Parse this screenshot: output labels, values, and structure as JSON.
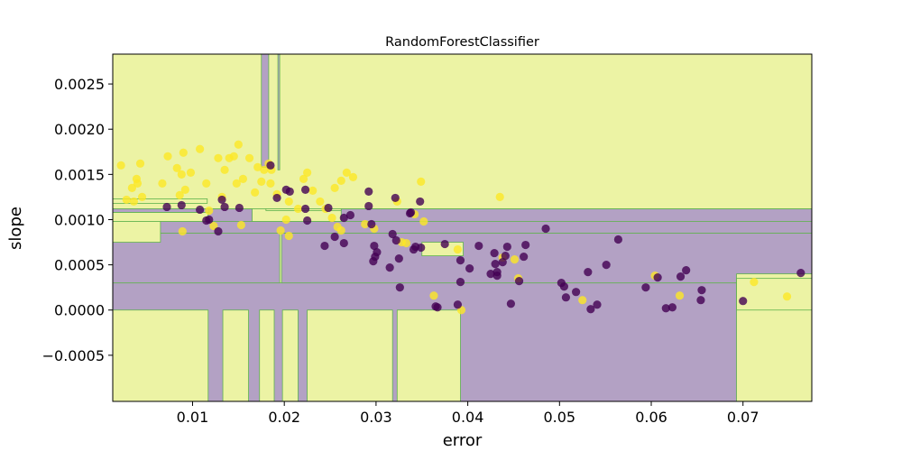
{
  "chart_data": {
    "type": "scatter",
    "title": "RandomForestClassifier",
    "xlabel": "error",
    "ylabel": "slope",
    "xlim": [
      0.0013,
      0.0775
    ],
    "ylim": [
      -0.00101,
      0.00283
    ],
    "grid": false,
    "legend": "none",
    "x_ticks": [
      {
        "value": 0.01,
        "label": "0.01"
      },
      {
        "value": 0.02,
        "label": "0.02"
      },
      {
        "value": 0.03,
        "label": "0.03"
      },
      {
        "value": 0.04,
        "label": "0.04"
      },
      {
        "value": 0.05,
        "label": "0.05"
      },
      {
        "value": 0.06,
        "label": "0.06"
      },
      {
        "value": 0.07,
        "label": "0.07"
      }
    ],
    "y_ticks": [
      {
        "value": -0.0005,
        "label": "−0.0005"
      },
      {
        "value": 0.0,
        "label": "0.0000"
      },
      {
        "value": 0.0005,
        "label": "0.0005"
      },
      {
        "value": 0.001,
        "label": "0.0010"
      },
      {
        "value": 0.0015,
        "label": "0.0015"
      },
      {
        "value": 0.002,
        "label": "0.0020"
      },
      {
        "value": 0.0025,
        "label": "0.0025"
      }
    ],
    "colors": {
      "class_1_region": "#ecf3a4",
      "class_0_region": "#b3a1c4",
      "region_boundary": "#5fb24e",
      "class_1_point": "#fde725",
      "class_0_point": "#440154"
    },
    "regions": [
      {
        "class": 0,
        "x": [
          0.0013,
          0.0775
        ],
        "y": [
          -0.00101,
          0.00112
        ]
      },
      {
        "class": 1,
        "x": [
          0.0013,
          0.0775
        ],
        "y": [
          0.00112,
          0.00283
        ]
      },
      {
        "class": 1,
        "x": [
          0.0013,
          0.0787
        ],
        "y": [
          0.0003,
          0.00085
        ]
      },
      {
        "class": 0,
        "x": [
          0.0013,
          0.0195
        ],
        "y": [
          0.0003,
          0.00085
        ]
      },
      {
        "class": 0,
        "x": [
          0.0197,
          0.0775
        ],
        "y": [
          0.0003,
          0.00085
        ]
      },
      {
        "class": 0,
        "x": [
          0.0013,
          0.0787
        ],
        "y": [
          0.00085,
          0.00098
        ]
      },
      {
        "class": 1,
        "x": [
          0.0013,
          0.0117
        ],
        "y": [
          0.00098,
          0.00108
        ]
      },
      {
        "class": 0,
        "x": [
          0.0013,
          0.0118
        ],
        "y": [
          0.00108,
          0.00112
        ]
      },
      {
        "class": 1,
        "x": [
          0.0013,
          0.0116
        ],
        "y": [
          0.00118,
          0.00123
        ]
      },
      {
        "class": 1,
        "x": [
          0.0013,
          0.0065
        ],
        "y": [
          0.00075,
          0.00098
        ]
      },
      {
        "class": 1,
        "x": [
          0.0165,
          0.0262
        ],
        "y": [
          0.00098,
          0.00112
        ]
      },
      {
        "class": 0,
        "x": [
          0.0175,
          0.0183
        ],
        "y": [
          0.00158,
          0.00283
        ]
      },
      {
        "class": 0,
        "x": [
          0.0193,
          0.0195
        ],
        "y": [
          0.00155,
          0.00283
        ]
      },
      {
        "class": 1,
        "x": [
          0.0013,
          0.0117
        ],
        "y": [
          -0.00101,
          0.0
        ]
      },
      {
        "class": 1,
        "x": [
          0.0133,
          0.0161
        ],
        "y": [
          -0.00101,
          0.0
        ]
      },
      {
        "class": 1,
        "x": [
          0.0173,
          0.0189
        ],
        "y": [
          -0.00101,
          0.0
        ]
      },
      {
        "class": 1,
        "x": [
          0.0198,
          0.0215
        ],
        "y": [
          -0.00101,
          0.0
        ]
      },
      {
        "class": 1,
        "x": [
          0.0225,
          0.0318
        ],
        "y": [
          -0.00101,
          0.0
        ]
      },
      {
        "class": 1,
        "x": [
          0.0323,
          0.0392
        ],
        "y": [
          -0.00101,
          0.0
        ]
      },
      {
        "class": 1,
        "x": [
          0.0693,
          0.0775
        ],
        "y": [
          -0.00101,
          0.0004
        ]
      },
      {
        "class": 1,
        "x": [
          0.0693,
          0.0775
        ],
        "y": [
          0.0,
          0.00035
        ]
      },
      {
        "class": 1,
        "x": [
          0.035,
          0.0395
        ],
        "y": [
          0.0006,
          0.00075
        ]
      },
      {
        "class": 1,
        "x": [
          0.018,
          0.0262
        ],
        "y": [
          0.0011,
          0.00112
        ]
      }
    ],
    "series": [
      {
        "class": 1,
        "points": [
          [
            0.0022,
            0.0016
          ],
          [
            0.0028,
            0.00122
          ],
          [
            0.0034,
            0.00135
          ],
          [
            0.0039,
            0.00145
          ],
          [
            0.004,
            0.0014
          ],
          [
            0.0043,
            0.00162
          ],
          [
            0.0045,
            0.00125
          ],
          [
            0.0036,
            0.0012
          ],
          [
            0.0067,
            0.0014
          ],
          [
            0.0073,
            0.0017
          ],
          [
            0.0083,
            0.00157
          ],
          [
            0.0088,
            0.0015
          ],
          [
            0.009,
            0.00174
          ],
          [
            0.0092,
            0.00133
          ],
          [
            0.0098,
            0.00152
          ],
          [
            0.0108,
            0.00178
          ],
          [
            0.0115,
            0.0014
          ],
          [
            0.0118,
            0.0011
          ],
          [
            0.0128,
            0.00168
          ],
          [
            0.0135,
            0.00155
          ],
          [
            0.014,
            0.00168
          ],
          [
            0.0145,
            0.0017
          ],
          [
            0.0148,
            0.0014
          ],
          [
            0.015,
            0.00183
          ],
          [
            0.0155,
            0.00145
          ],
          [
            0.0162,
            0.00168
          ],
          [
            0.0168,
            0.0013
          ],
          [
            0.0171,
            0.00158
          ],
          [
            0.0178,
            0.00155
          ],
          [
            0.0183,
            0.00162
          ],
          [
            0.0186,
            0.00155
          ],
          [
            0.0175,
            0.00142
          ],
          [
            0.0185,
            0.0014
          ],
          [
            0.0192,
            0.00128
          ],
          [
            0.0205,
            0.0012
          ],
          [
            0.0202,
            0.001
          ],
          [
            0.0196,
            0.00088
          ],
          [
            0.0205,
            0.00082
          ],
          [
            0.0215,
            0.00112
          ],
          [
            0.0221,
            0.00145
          ],
          [
            0.0225,
            0.00152
          ],
          [
            0.0231,
            0.00132
          ],
          [
            0.0239,
            0.0012
          ],
          [
            0.0245,
            0.00112
          ],
          [
            0.0252,
            0.00102
          ],
          [
            0.0255,
            0.00135
          ],
          [
            0.0262,
            0.00143
          ],
          [
            0.0268,
            0.00152
          ],
          [
            0.0275,
            0.00147
          ],
          [
            0.0258,
            0.00092
          ],
          [
            0.0262,
            0.00088
          ],
          [
            0.0288,
            0.00095
          ],
          [
            0.0298,
            0.0009
          ],
          [
            0.0323,
            0.0012
          ],
          [
            0.0328,
            0.00075
          ],
          [
            0.0333,
            0.00074
          ],
          [
            0.0342,
            0.00106
          ],
          [
            0.0349,
            0.00142
          ],
          [
            0.0352,
            0.00098
          ],
          [
            0.0363,
            0.00016
          ],
          [
            0.0389,
            0.00067
          ],
          [
            0.0393,
            0.0
          ],
          [
            0.0435,
            0.00125
          ],
          [
            0.0438,
            0.00058
          ],
          [
            0.0451,
            0.00056
          ],
          [
            0.0455,
            0.00035
          ],
          [
            0.0525,
            0.00011
          ],
          [
            0.0604,
            0.00038
          ],
          [
            0.0631,
            0.00016
          ],
          [
            0.0712,
            0.00031
          ],
          [
            0.0748,
            0.00015
          ],
          [
            0.0089,
            0.00087
          ],
          [
            0.0086,
            0.00127
          ],
          [
            0.0132,
            0.00125
          ],
          [
            0.0123,
            0.00093
          ],
          [
            0.0153,
            0.00094
          ]
        ]
      },
      {
        "class": 0,
        "points": [
          [
            0.0072,
            0.00114
          ],
          [
            0.0088,
            0.00116
          ],
          [
            0.0108,
            0.00111
          ],
          [
            0.0115,
            0.00099
          ],
          [
            0.0118,
            0.001
          ],
          [
            0.0128,
            0.00087
          ],
          [
            0.0132,
            0.00122
          ],
          [
            0.0135,
            0.00114
          ],
          [
            0.0151,
            0.00113
          ],
          [
            0.0185,
            0.0016
          ],
          [
            0.0192,
            0.00124
          ],
          [
            0.0202,
            0.00133
          ],
          [
            0.0206,
            0.00131
          ],
          [
            0.0223,
            0.00133
          ],
          [
            0.0223,
            0.00112
          ],
          [
            0.0225,
            0.00099
          ],
          [
            0.0244,
            0.00071
          ],
          [
            0.0248,
            0.00113
          ],
          [
            0.0255,
            0.00081
          ],
          [
            0.0265,
            0.00102
          ],
          [
            0.0265,
            0.00074
          ],
          [
            0.0272,
            0.00105
          ],
          [
            0.0292,
            0.00131
          ],
          [
            0.0292,
            0.00115
          ],
          [
            0.0295,
            0.00095
          ],
          [
            0.0298,
            0.00071
          ],
          [
            0.0301,
            0.00064
          ],
          [
            0.0299,
            0.00059
          ],
          [
            0.0297,
            0.00054
          ],
          [
            0.0315,
            0.00047
          ],
          [
            0.0318,
            0.00084
          ],
          [
            0.0321,
            0.00124
          ],
          [
            0.0322,
            0.00077
          ],
          [
            0.0325,
            0.00057
          ],
          [
            0.0326,
            0.00025
          ],
          [
            0.0337,
            0.00107
          ],
          [
            0.0338,
            0.00108
          ],
          [
            0.0341,
            0.00067
          ],
          [
            0.0343,
            0.0007
          ],
          [
            0.0348,
            0.0012
          ],
          [
            0.0349,
            0.00069
          ],
          [
            0.0365,
            4e-05
          ],
          [
            0.0367,
            3e-05
          ],
          [
            0.0375,
            0.00073
          ],
          [
            0.0392,
            0.00055
          ],
          [
            0.0392,
            0.00031
          ],
          [
            0.0389,
            6e-05
          ],
          [
            0.0402,
            0.00046
          ],
          [
            0.0412,
            0.00071
          ],
          [
            0.0425,
            0.0004
          ],
          [
            0.0429,
            0.00063
          ],
          [
            0.043,
            0.00051
          ],
          [
            0.0432,
            0.00042
          ],
          [
            0.0432,
            0.00038
          ],
          [
            0.0438,
            0.00053
          ],
          [
            0.0441,
            0.0006
          ],
          [
            0.0443,
            0.0007
          ],
          [
            0.0447,
            7e-05
          ],
          [
            0.0456,
            0.00032
          ],
          [
            0.0461,
            0.00059
          ],
          [
            0.0463,
            0.00072
          ],
          [
            0.0485,
            0.0009
          ],
          [
            0.0502,
            0.0003
          ],
          [
            0.0505,
            0.00026
          ],
          [
            0.0507,
            0.00014
          ],
          [
            0.0518,
            0.0002
          ],
          [
            0.0531,
            0.00042
          ],
          [
            0.0534,
            1e-05
          ],
          [
            0.0541,
            6e-05
          ],
          [
            0.0551,
            0.0005
          ],
          [
            0.0564,
            0.00078
          ],
          [
            0.0594,
            0.00025
          ],
          [
            0.0607,
            0.00036
          ],
          [
            0.0616,
            2e-05
          ],
          [
            0.0623,
            3e-05
          ],
          [
            0.0632,
            0.00037
          ],
          [
            0.0638,
            0.00044
          ],
          [
            0.0654,
            0.00011
          ],
          [
            0.0655,
            0.00022
          ],
          [
            0.07,
            0.0001
          ],
          [
            0.0763,
            0.00041
          ]
        ]
      }
    ]
  }
}
